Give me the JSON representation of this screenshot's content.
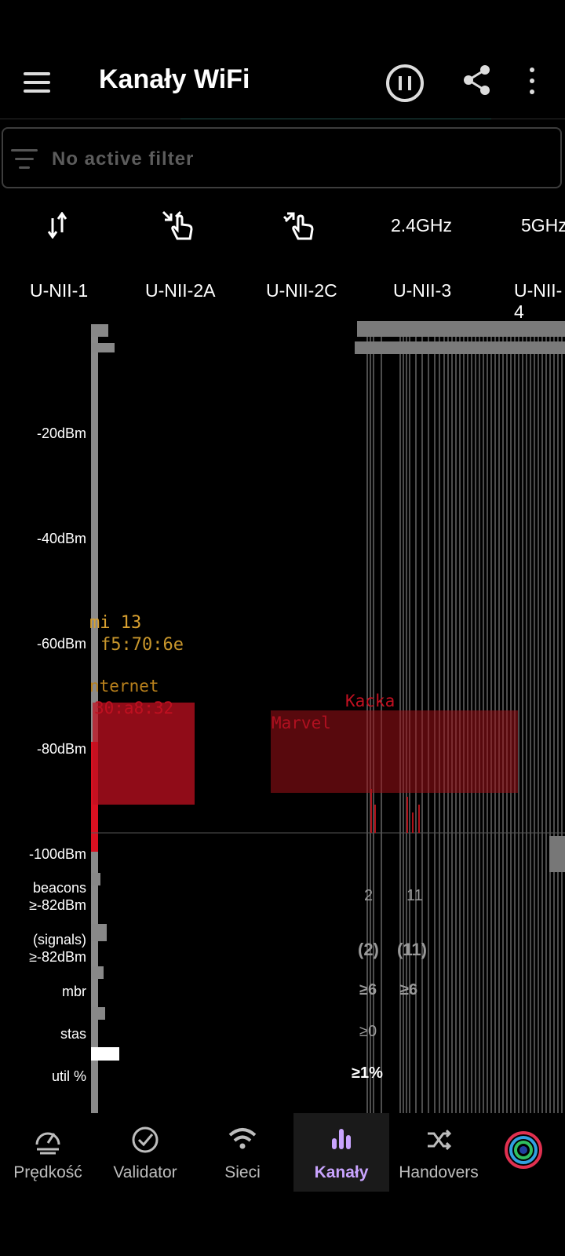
{
  "appbar": {
    "title": "Kanały WiFi"
  },
  "filter": {
    "text": "No active filter"
  },
  "toolbar": {
    "band_24": "2.4GHz",
    "band_5": "5GHz"
  },
  "subbands": [
    "U-NII-1",
    "U-NII-2A",
    "U-NII-2C",
    "U-NII-3",
    "U-NII-4"
  ],
  "chart": {
    "y_ticks": [
      "-20dBm",
      "-40dBm",
      "-60dBm",
      "-80dBm",
      "-100dBm"
    ],
    "rows": {
      "beacons": [
        "beacons",
        "≥-82dBm"
      ],
      "signals": [
        "(signals)",
        "≥-82dBm"
      ],
      "mbr": "mbr",
      "stas": "stas",
      "util": "util %"
    },
    "networks": {
      "mi": "mi 13",
      "mi_mac": "f5:70:6e",
      "internet": "nternet",
      "mac_a8": "30:a8:32",
      "kacka": "Kacka",
      "marvel": "Marvel"
    },
    "values": {
      "beacons_2": "2",
      "beacons_11": "11",
      "signals_2": "(2)",
      "signals_11": "(11)",
      "mbr_6": "≥6",
      "mbr_66": "≥6",
      "stas_0": "≥0",
      "util_1": "≥1%"
    },
    "colors": {
      "strong": "#d8a030",
      "weak": "#d81020",
      "grid": "#777777"
    }
  },
  "nav": [
    {
      "label": "Prędkość",
      "icon": "speedometer-icon"
    },
    {
      "label": "Validator",
      "icon": "check-circle-icon"
    },
    {
      "label": "Sieci",
      "icon": "wifi-icon"
    },
    {
      "label": "Kanały",
      "icon": "bar-chart-icon",
      "active": true
    },
    {
      "label": "Handovers",
      "icon": "shuffle-icon"
    },
    {
      "label": "",
      "icon": "app-logo-icon"
    }
  ]
}
